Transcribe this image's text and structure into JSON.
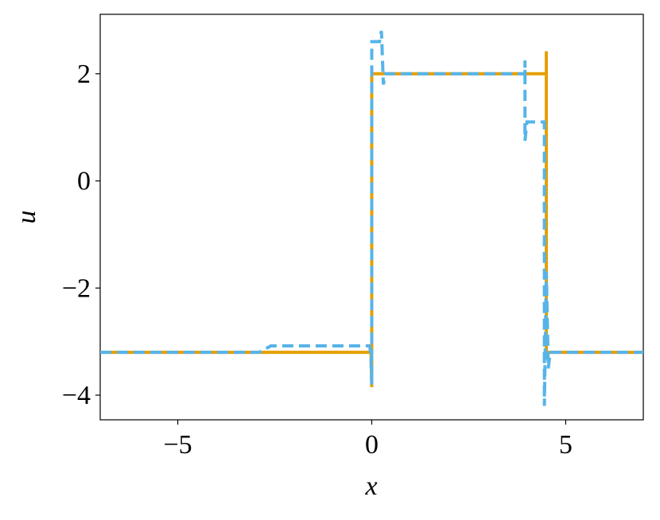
{
  "chart_data": {
    "type": "line",
    "xlabel": "x",
    "ylabel": "u",
    "xlim": [
      -7,
      7
    ],
    "ylim": [
      -4.46,
      3.11
    ],
    "xticks": [
      {
        "value": -5,
        "label": "−5"
      },
      0,
      5
    ],
    "yticks": [
      {
        "value": -4,
        "label": "−4"
      },
      {
        "value": -2,
        "label": "−2"
      },
      0,
      2
    ],
    "series": [
      {
        "color": "#e69f00",
        "dash": false,
        "x": [
          -7,
          -0.02,
          0,
          0,
          4.5,
          4.5,
          4.5,
          4.5,
          7
        ],
        "values": [
          -3.2,
          -3.2,
          -3.85,
          2,
          2,
          2.42,
          -3.2,
          -3.2,
          -3.2
        ]
      },
      {
        "color": "#56b4e9",
        "dash": true,
        "x": [
          -7,
          -2.9,
          -2.6,
          -0.05,
          -0.02,
          0,
          0,
          0.2,
          0.25,
          0.3,
          0.35,
          3.95,
          3.95,
          3.95,
          4.0,
          4.3,
          4.45,
          4.45,
          4.5,
          4.55,
          4.6,
          7
        ],
        "values": [
          -3.2,
          -3.2,
          -3.08,
          -3.08,
          -3.3,
          -3.8,
          2.6,
          2.6,
          2.8,
          1.8,
          2,
          2,
          2.25,
          0.75,
          1.1,
          1.1,
          1.1,
          -4.2,
          -1.7,
          -3.5,
          -3.2,
          -3.2
        ]
      }
    ]
  }
}
